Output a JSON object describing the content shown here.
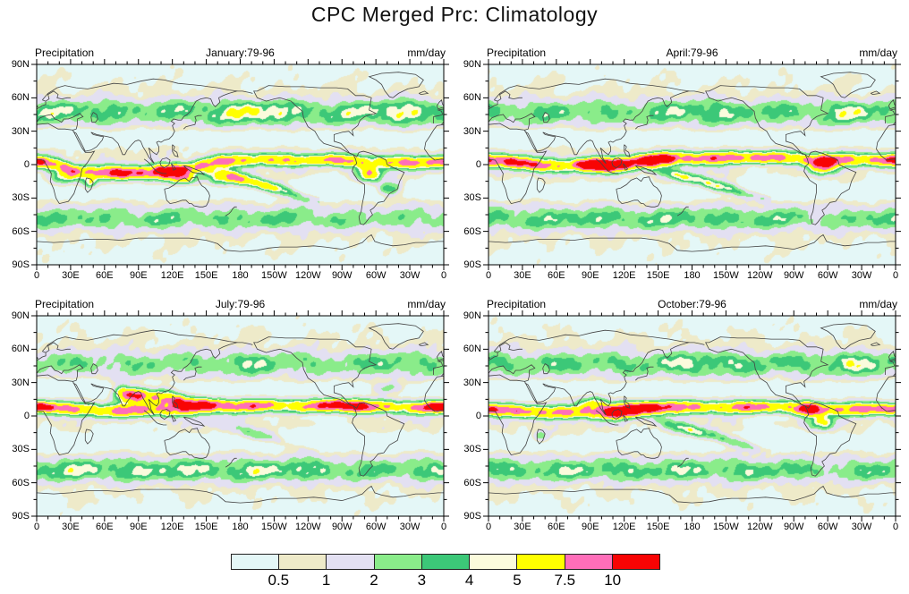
{
  "title": "CPC Merged Prc: Climatology",
  "panels": [
    {
      "label": "Precipitation",
      "period": "January:79-96",
      "units": "mm/day"
    },
    {
      "label": "Precipitation",
      "period": "April:79-96",
      "units": "mm/day"
    },
    {
      "label": "Precipitation",
      "period": "July:79-96",
      "units": "mm/day"
    },
    {
      "label": "Precipitation",
      "period": "October:79-96",
      "units": "mm/day"
    }
  ],
  "axes": {
    "lat_ticks": [
      "90N",
      "60N",
      "30N",
      "0",
      "30S",
      "60S",
      "90S"
    ],
    "lat_values": [
      90,
      60,
      30,
      0,
      -30,
      -60,
      -90
    ],
    "lon_ticks": [
      "0",
      "30E",
      "60E",
      "90E",
      "120E",
      "150E",
      "180",
      "150W",
      "120W",
      "90W",
      "60W",
      "30W",
      "0"
    ],
    "lon_values": [
      0,
      30,
      60,
      90,
      120,
      150,
      180,
      210,
      240,
      270,
      300,
      330,
      360
    ]
  },
  "colorbar": {
    "labels": [
      "0.5",
      "1",
      "2",
      "3",
      "4",
      "5",
      "7.5",
      "10"
    ],
    "colors": [
      "#e4f7f7",
      "#eeeac9",
      "#e3e0f2",
      "#8aec8a",
      "#3cc878",
      "#fbfbdc",
      "#ffff00",
      "#ff6eb9",
      "#f80404"
    ]
  },
  "chart_data": {
    "type": "heatmap",
    "subtype": "filled-contour global precipitation climatology maps, equirectangular projection, longitude 0E eastward to 0 (360), latitude 90S-90N, with coastline overlay",
    "title": "CPC Merged Prc: Climatology",
    "variable": "Precipitation",
    "units": "mm/day",
    "period": "1979-1996 climatology",
    "panels": [
      "January:79-96",
      "April:79-96",
      "July:79-96",
      "October:79-96"
    ],
    "layout": "2x2 grid of identical world maps, shared shaded color scale below",
    "lon_axis": {
      "range": [
        0,
        360
      ],
      "major_tick_deg": 30,
      "minor_tick_deg": 10,
      "labels": [
        "0",
        "30E",
        "60E",
        "90E",
        "120E",
        "150E",
        "180",
        "150W",
        "120W",
        "90W",
        "60W",
        "30W",
        "0"
      ]
    },
    "lat_axis": {
      "range": [
        -90,
        90
      ],
      "major_tick_deg": 30,
      "minor_tick_deg": 15,
      "labels": [
        "90N",
        "60N",
        "30N",
        "0",
        "30S",
        "60S",
        "90S"
      ]
    },
    "contour_levels": [
      0.5,
      1,
      2,
      3,
      4,
      5,
      7.5,
      10
    ],
    "bins": [
      {
        "range": "< 0.5",
        "color": "#e4f7f7"
      },
      {
        "range": "0.5 - 1",
        "color": "#eeeac9"
      },
      {
        "range": "1 - 2",
        "color": "#e3e0f2"
      },
      {
        "range": "2 - 3",
        "color": "#8aec8a"
      },
      {
        "range": "3 - 4",
        "color": "#3cc878"
      },
      {
        "range": "4 - 5",
        "color": "#fbfbdc"
      },
      {
        "range": "5 - 7.5",
        "color": "#ffff00"
      },
      {
        "range": "7.5 - 10",
        "color": "#ff6eb9"
      },
      {
        "range": "> 10",
        "color": "#f80404"
      }
    ],
    "features": [
      "January: heavy rain band (>10 mm/day, red/pink) south of the equator over Indonesia, north Australia, SPCZ and Amazon; Pacific/Atlantic ITCZ near 5N",
      "April: ITCZ near the equator; red maxima over west Pacific warm pool and Amazon",
      "July: strong monsoon maxima over India/Bay of Bengal/SE Asia (~15-20N), West Africa and Central America; Pacific ITCZ ~8-10N",
      "October: ITCZ ~5-10N across Pacific and Atlantic; Bay of Bengal and NW South America maxima",
      "Midlatitude storm-track green bands (2-4 mm/day) near 40-55 N/S; pale dry subtropics, deserts and poles (<1 mm/day)"
    ]
  }
}
